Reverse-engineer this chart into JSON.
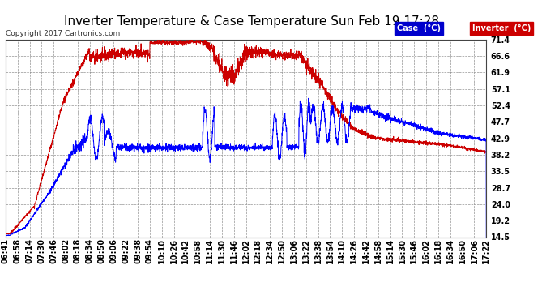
{
  "title": "Inverter Temperature & Case Temperature Sun Feb 19 17:28",
  "copyright": "Copyright 2017 Cartronics.com",
  "bg_color": "#ffffff",
  "plot_bg_color": "#ffffff",
  "grid_color": "#aaaaaa",
  "yticks": [
    14.5,
    19.2,
    24.0,
    28.7,
    33.5,
    38.2,
    42.9,
    47.7,
    52.4,
    57.1,
    61.9,
    66.6,
    71.4
  ],
  "xtick_labels": [
    "06:41",
    "06:58",
    "07:14",
    "07:30",
    "07:46",
    "08:02",
    "08:18",
    "08:34",
    "08:50",
    "09:06",
    "09:22",
    "09:38",
    "09:54",
    "10:10",
    "10:26",
    "10:42",
    "10:58",
    "11:14",
    "11:30",
    "11:46",
    "12:02",
    "12:18",
    "12:34",
    "12:50",
    "13:06",
    "13:22",
    "13:38",
    "13:54",
    "14:10",
    "14:26",
    "14:42",
    "14:58",
    "15:14",
    "15:30",
    "15:46",
    "16:02",
    "16:18",
    "16:34",
    "16:50",
    "17:06",
    "17:22"
  ],
  "legend_case_label": "Case  (°C)",
  "legend_inverter_label": "Inverter  (°C)",
  "case_color": "#0000ff",
  "inverter_color": "#cc0000",
  "legend_case_bg": "#0000cc",
  "legend_inverter_bg": "#cc0000",
  "ylim": [
    14.5,
    71.4
  ],
  "title_fontsize": 11,
  "axis_fontsize": 7,
  "copyright_fontsize": 6.5
}
